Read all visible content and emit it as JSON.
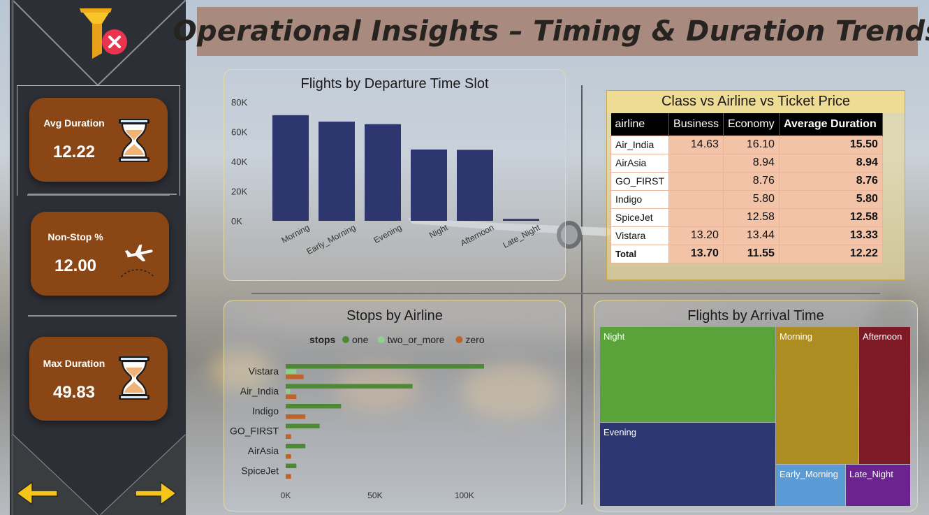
{
  "title": "Operational Insights – Timing & Duration Trends",
  "colors": {
    "sidebar": "#2d2f36",
    "kpi_card": "#8a4715",
    "bar": "#2e3670",
    "stop_one": "#4e8a35",
    "stop_two": "#8fd18a",
    "stop_zero": "#c0632a",
    "table_cell": "#f3c3a8"
  },
  "sidebar": {
    "filter_icon": "clear-filter-icon",
    "kpis": [
      {
        "label": "Avg Duration",
        "value": "12.22",
        "icon": "hourglass-icon"
      },
      {
        "label": "Non-Stop %",
        "value": "12.00",
        "icon": "flight-route-icon"
      },
      {
        "label": "Max Duration",
        "value": "49.83",
        "icon": "hourglass-icon"
      }
    ],
    "nav": {
      "back": "arrow-left-icon",
      "forward": "arrow-right-icon"
    }
  },
  "departure_chart": {
    "title": "Flights by Departure Time Slot",
    "chart_data": {
      "type": "bar",
      "categories": [
        "Morning",
        "Early_Morning",
        "Evening",
        "Night",
        "Afternoon",
        "Late_Night"
      ],
      "values": [
        71146,
        66790,
        65102,
        48015,
        47794,
        1306
      ],
      "ylim": [
        0,
        80000
      ],
      "yticks": [
        "80K",
        "60K",
        "40K",
        "20K",
        "0K"
      ]
    }
  },
  "stops_chart": {
    "title": "Stops by Airline",
    "legend_title": "stops",
    "chart_data": {
      "type": "bar",
      "orientation": "horizontal",
      "categories": [
        "Vistara",
        "Air_India",
        "Indigo",
        "GO_FIRST",
        "AirAsia",
        "SpiceJet"
      ],
      "series": [
        {
          "name": "one",
          "values": [
            111000,
            71000,
            31000,
            19000,
            11000,
            6000
          ]
        },
        {
          "name": "two_or_more",
          "values": [
            6000,
            2500,
            400,
            300,
            800,
            200
          ]
        },
        {
          "name": "zero",
          "values": [
            10000,
            6000,
            11000,
            3000,
            3000,
            3000
          ]
        }
      ],
      "xlim": [
        0,
        120000
      ],
      "xticks": [
        "0K",
        "50K",
        "100K"
      ]
    }
  },
  "matrix": {
    "title": "Class vs Airline vs Ticket Price",
    "columns": [
      "airline",
      "Business",
      "Economy",
      "Average Duration"
    ],
    "rows": [
      {
        "airline": "Air_India",
        "business": "14.63",
        "economy": "16.10",
        "avg": "15.50"
      },
      {
        "airline": "AirAsia",
        "business": "",
        "economy": "8.94",
        "avg": "8.94"
      },
      {
        "airline": "GO_FIRST",
        "business": "",
        "economy": "8.76",
        "avg": "8.76"
      },
      {
        "airline": "Indigo",
        "business": "",
        "economy": "5.80",
        "avg": "5.80"
      },
      {
        "airline": "SpiceJet",
        "business": "",
        "economy": "12.58",
        "avg": "12.58"
      },
      {
        "airline": "Vistara",
        "business": "13.20",
        "economy": "13.44",
        "avg": "13.33"
      }
    ],
    "total": {
      "airline": "Total",
      "business": "13.70",
      "economy": "11.55",
      "avg": "12.22"
    }
  },
  "arrival_chart": {
    "title": "Flights by Arrival Time",
    "chart_data": {
      "type": "treemap",
      "categories": [
        "Night",
        "Evening",
        "Morning",
        "Afternoon",
        "Early_Morning",
        "Late_Night"
      ],
      "colors": [
        "#5aa33a",
        "#2d3872",
        "#ad8d22",
        "#7d1a26",
        "#5b9bd5",
        "#6c2392"
      ]
    }
  }
}
